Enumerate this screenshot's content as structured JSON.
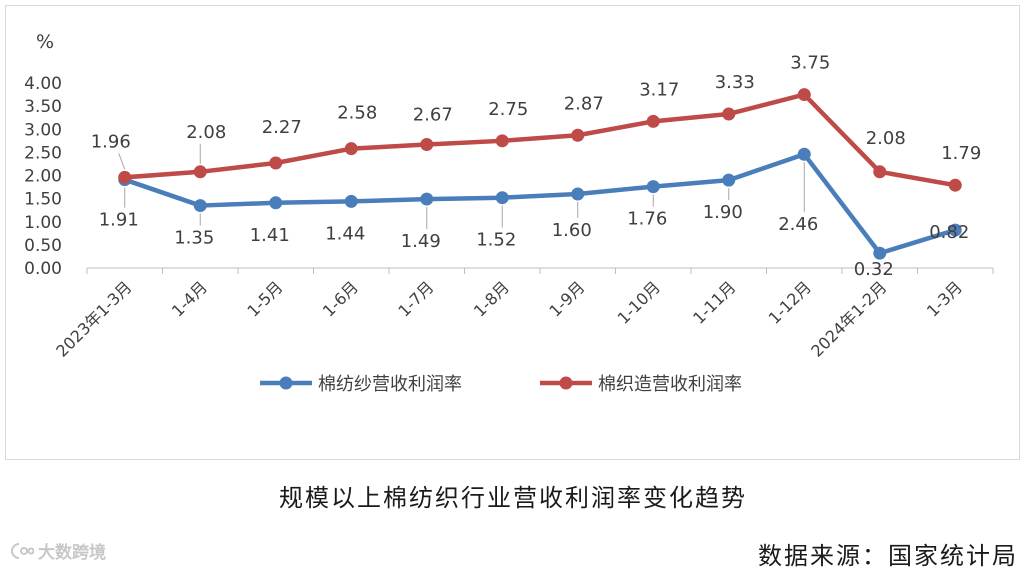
{
  "chart_data": {
    "type": "line",
    "ylabel": "%",
    "ylim": [
      0,
      4.0
    ],
    "yticks": [
      "0.00",
      "0.50",
      "1.00",
      "1.50",
      "2.00",
      "2.50",
      "3.00",
      "3.50",
      "4.00"
    ],
    "categories": [
      "2023年1-3月",
      "1-4月",
      "1-5月",
      "1-6月",
      "1-7月",
      "1-8月",
      "1-9月",
      "1-10月",
      "1-11月",
      "1-12月",
      "2024年1-2月",
      "1-3月"
    ],
    "series": [
      {
        "name": "棉纺纱营收利润率",
        "color": "#4a7ebb",
        "values": [
          1.91,
          1.35,
          1.41,
          1.44,
          1.49,
          1.52,
          1.6,
          1.76,
          1.9,
          2.46,
          0.32,
          0.82
        ],
        "labels": [
          "1.91",
          "1.35",
          "1.41",
          "1.44",
          "1.49",
          "1.52",
          "1.60",
          "1.76",
          "1.90",
          "2.46",
          "0.32",
          "0.82"
        ]
      },
      {
        "name": "棉织造营收利润率",
        "color": "#be4b48",
        "values": [
          1.96,
          2.08,
          2.27,
          2.58,
          2.67,
          2.75,
          2.87,
          3.17,
          3.33,
          3.75,
          2.08,
          1.79
        ],
        "labels": [
          "1.96",
          "2.08",
          "2.27",
          "2.58",
          "2.67",
          "2.75",
          "2.87",
          "3.17",
          "3.33",
          "3.75",
          "2.08",
          "1.79"
        ]
      }
    ],
    "legend_position": "bottom",
    "grid": false
  },
  "caption": "规模以上棉纺织行业营收利润率变化趋势",
  "source": "数据来源：国家统计局",
  "watermark": "大数跨境"
}
